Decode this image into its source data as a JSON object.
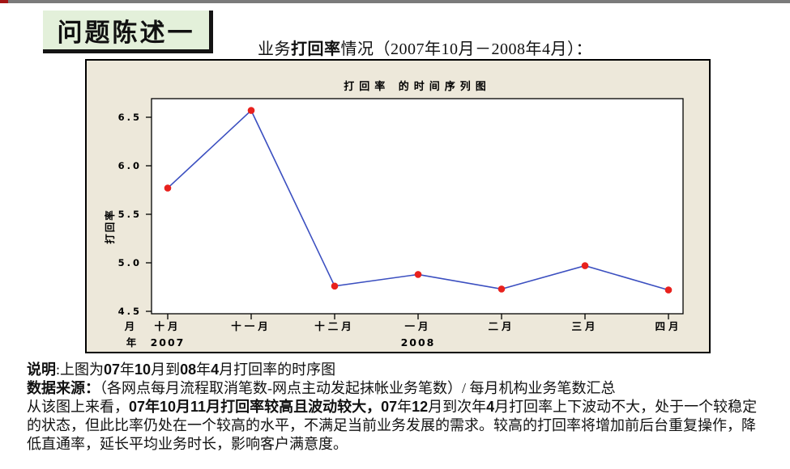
{
  "slide": {
    "top_bar": {
      "accent_color": "#a31515",
      "bar_color": "#7b7b7b"
    },
    "badge": {
      "label": "问题陈述一",
      "bg_color": "#e3f0da"
    },
    "subtitle_segments": [
      {
        "t": "业务",
        "b": false
      },
      {
        "t": "打回率",
        "b": true
      },
      {
        "t": "情况（2007年10月－2008年4月）：",
        "b": false
      }
    ],
    "notes_paragraphs": [
      [
        {
          "t": "说明",
          "b": true
        },
        {
          "t": ":上图为",
          "b": false
        },
        {
          "t": "07",
          "b": true
        },
        {
          "t": "年",
          "b": false
        },
        {
          "t": "10",
          "b": true
        },
        {
          "t": "月到",
          "b": false
        },
        {
          "t": "08",
          "b": true
        },
        {
          "t": "年",
          "b": false
        },
        {
          "t": "4",
          "b": true
        },
        {
          "t": "月打回率的时序图",
          "b": false
        }
      ],
      [
        {
          "t": "数据来源：",
          "b": true
        },
        {
          "t": "（各网点每月流程取消笔数-网点主动发起抹帐业务笔数）/ 每月机构业务笔数汇总",
          "b": false
        }
      ],
      [
        {
          "t": "从该图上来看，",
          "b": false
        },
        {
          "t": "07年10月11月打回率较高且波动较大，",
          "b": true
        },
        {
          "t": "07",
          "b": true
        },
        {
          "t": "年",
          "b": false
        },
        {
          "t": "12",
          "b": true
        },
        {
          "t": "月到次年",
          "b": false
        },
        {
          "t": "4",
          "b": true
        },
        {
          "t": "月打回率上下波动不大，处于一个较稳定的状态，但此比率仍处在一个较高的水平，不满足当前业务发展的需求。较高的打回率将增加前后台重复操作，降低直通率，延长平均业务时长，影响客户满意度。",
          "b": false
        }
      ]
    ]
  },
  "chart_data": {
    "type": "line",
    "title": "打回率 的时间序列图",
    "categories": [
      "十月",
      "十一月",
      "十二月",
      "一月",
      "二月",
      "三月",
      "四月"
    ],
    "values": [
      5.77,
      6.57,
      4.76,
      4.88,
      4.73,
      4.97,
      4.72
    ],
    "ylabel": "打回率",
    "yticks": [
      4.5,
      5.0,
      5.5,
      6.0,
      6.5
    ],
    "ylim": [
      4.5,
      6.72
    ],
    "grid": false,
    "x_axis_prefix": {
      "month": "月",
      "year": "年"
    },
    "year_labels": [
      {
        "text": "2007",
        "index": 0
      },
      {
        "text": "2008",
        "index": 3
      }
    ],
    "colors": {
      "line": "#3b4fc0",
      "marker": "#e8211d",
      "panel_bg": "#ede8da",
      "plot_bg": "#ffffff",
      "axis": "#000000"
    }
  }
}
